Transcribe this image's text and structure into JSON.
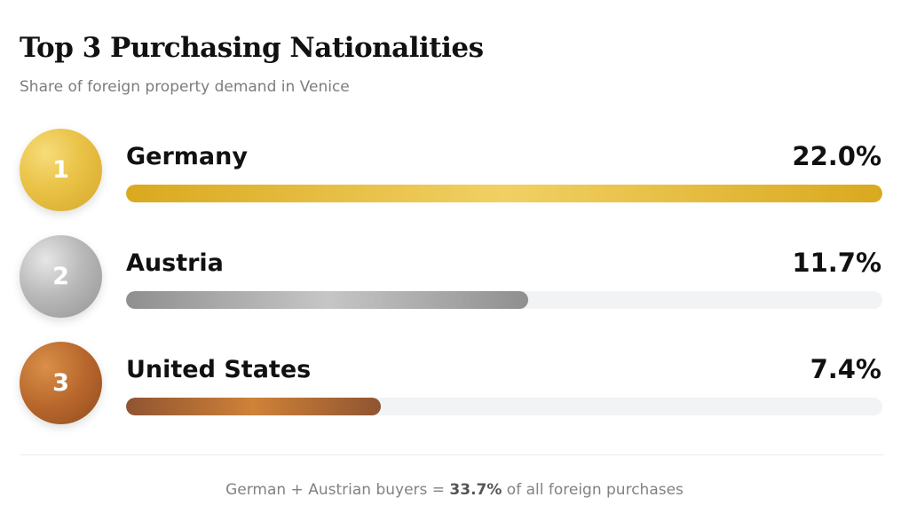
{
  "chart_data": {
    "type": "bar",
    "orientation": "horizontal",
    "title": "Top 3 Purchasing Nationalities",
    "subtitle": "Share of foreign property demand in Venice",
    "categories": [
      "Germany",
      "Austria",
      "United States"
    ],
    "values": [
      22.0,
      11.7,
      7.4
    ],
    "ranks": [
      "1",
      "2",
      "3"
    ],
    "value_labels": [
      "22.0%",
      "11.7%",
      "7.4%"
    ],
    "unit": "%",
    "xlim": [
      0,
      22.0
    ],
    "grid": false,
    "legend": "none",
    "colors": {
      "gold": "#e3b83a",
      "silver": "#b3b3b3",
      "bronze": "#b8672c",
      "track": "#f2f3f5"
    },
    "annotation": {
      "prefix": "German + Austrian buyers = ",
      "highlight": "33.7%",
      "suffix": " of all foreign purchases"
    }
  }
}
